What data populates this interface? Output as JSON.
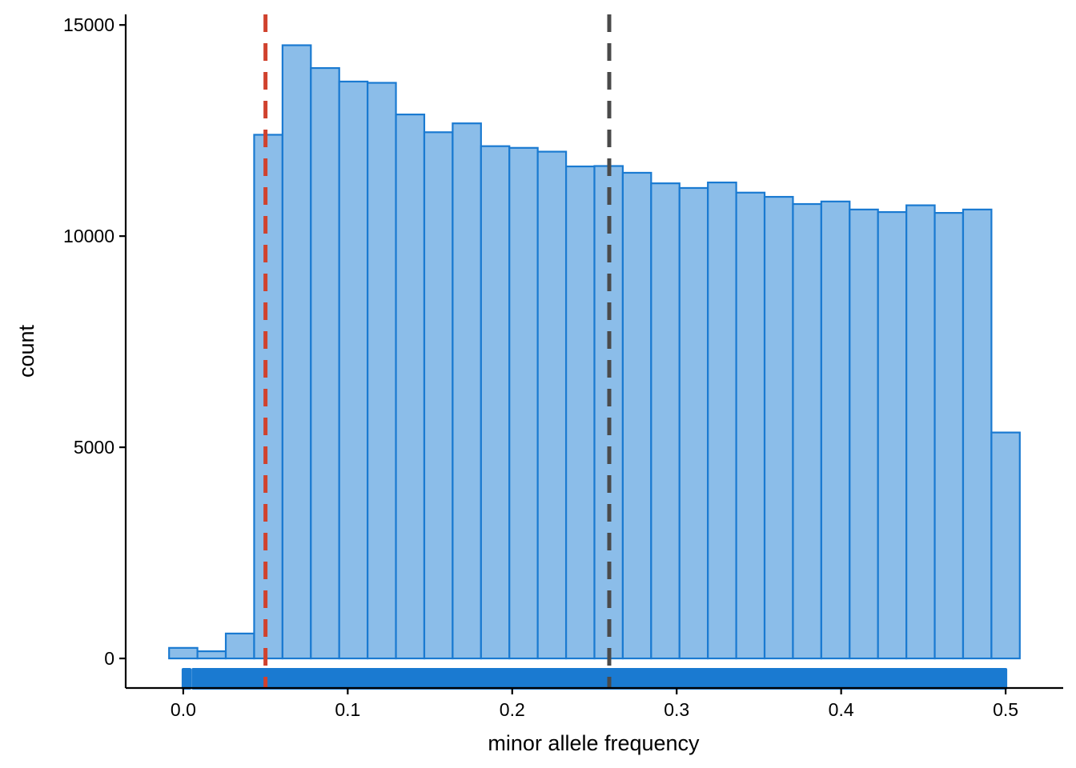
{
  "chart_data": {
    "type": "bar",
    "title": "",
    "xlabel": "minor allele frequency",
    "ylabel": "count",
    "xlim": [
      -0.035,
      0.535
    ],
    "ylim": [
      -700,
      15250
    ],
    "x_ticks": [
      0.0,
      0.1,
      0.2,
      0.3,
      0.4,
      0.5
    ],
    "x_tick_labels": [
      "0.0",
      "0.1",
      "0.2",
      "0.3",
      "0.4",
      "0.5"
    ],
    "y_ticks": [
      0,
      5000,
      10000,
      15000
    ],
    "y_tick_labels": [
      "0",
      "5000",
      "10000",
      "15000"
    ],
    "grid": false,
    "legend": "none",
    "bin_width": 0.01724,
    "bin_centers": [
      0.0,
      0.01724,
      0.03448,
      0.05172,
      0.06897,
      0.08621,
      0.10345,
      0.12069,
      0.13793,
      0.15517,
      0.17241,
      0.18966,
      0.2069,
      0.22414,
      0.24138,
      0.25862,
      0.27586,
      0.2931,
      0.31034,
      0.32759,
      0.34483,
      0.36207,
      0.37931,
      0.39655,
      0.41379,
      0.43103,
      0.44828,
      0.46552,
      0.48276,
      0.5
    ],
    "counts": [
      250,
      170,
      590,
      12400,
      14520,
      13980,
      13660,
      13630,
      12880,
      12460,
      12670,
      12130,
      12090,
      12000,
      11650,
      11660,
      11500,
      11250,
      11140,
      11270,
      11030,
      10930,
      10760,
      10820,
      10630,
      10570,
      10730,
      10550,
      10630,
      5350
    ],
    "rug": {
      "segments": [
        [
          0.0,
          0.004
        ],
        [
          0.006,
          0.5
        ]
      ],
      "color": "#1A7AD1"
    },
    "reference_lines": [
      {
        "x": 0.05,
        "color": "#D0422E",
        "style": "dashed"
      },
      {
        "x": 0.259,
        "color": "#4A4A4A",
        "style": "dashed"
      }
    ],
    "colors": {
      "bar_fill": "#8BBDE9",
      "bar_stroke": "#1A7AD1",
      "axis": "#000000"
    }
  }
}
